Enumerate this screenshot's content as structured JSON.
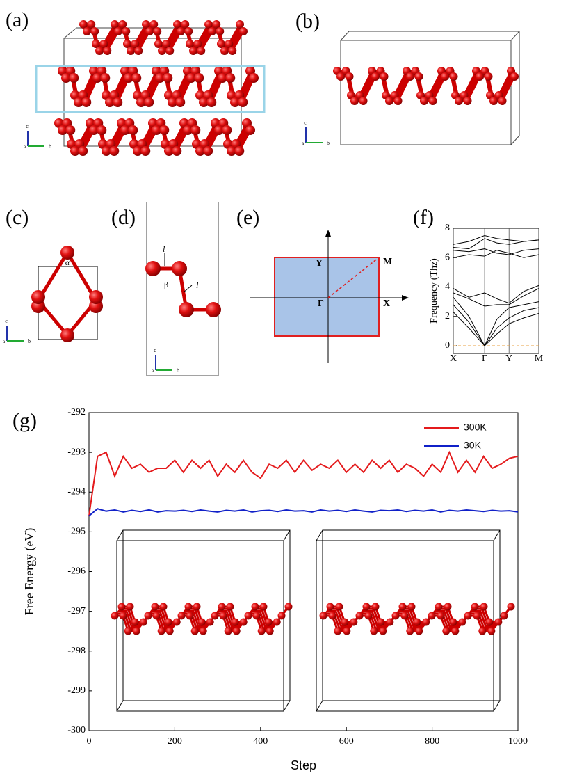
{
  "panel_labels": [
    "(a)",
    "(b)",
    "(c)",
    "(d)",
    "(e)",
    "(f)",
    "(g)"
  ],
  "structure_labels": {
    "axis_c": "c",
    "axis_b": "b",
    "axis_a": "a",
    "alpha": "α",
    "beta": "β",
    "bond_l": "l",
    "bz_Y": "Y",
    "bz_M": "M",
    "bz_Gamma": "Γ",
    "bz_X": "X"
  },
  "chart_data": [
    {
      "type": "line",
      "ylabel": "Frequency (Thz)",
      "x": [
        0,
        0.5,
        1,
        1.39,
        1.78,
        2.25,
        2.73
      ],
      "xlim": [
        0,
        2.73
      ],
      "xticks": [
        {
          "value": 0,
          "label": "X"
        },
        {
          "value": 1,
          "label": "Γ"
        },
        {
          "value": 1.78,
          "label": "Y"
        },
        {
          "value": 2.73,
          "label": "M"
        }
      ],
      "ylim": [
        -0.52,
        8
      ],
      "yticks": [
        0,
        2,
        4,
        6,
        8
      ],
      "reference_line": {
        "value": 0,
        "color": "#e8a040"
      },
      "series": [
        {
          "color": "#000000",
          "values": [
            2.3,
            1.2,
            0,
            0.8,
            1.5,
            1.9,
            2.2
          ]
        },
        {
          "color": "#000000",
          "values": [
            2.8,
            1.6,
            0,
            1.2,
            1.9,
            2.4,
            2.6
          ]
        },
        {
          "color": "#000000",
          "values": [
            3.3,
            2.0,
            0,
            1.8,
            2.6,
            2.8,
            3.0
          ]
        },
        {
          "color": "#000000",
          "values": [
            3.6,
            3.2,
            2.7,
            2.8,
            2.8,
            3.4,
            3.9
          ]
        },
        {
          "color": "#000000",
          "values": [
            3.9,
            3.3,
            3.6,
            3.2,
            2.9,
            3.7,
            4.1
          ]
        },
        {
          "color": "#000000",
          "values": [
            6.0,
            6.2,
            6.1,
            6.5,
            6.3,
            6.0,
            6.2
          ]
        },
        {
          "color": "#000000",
          "values": [
            6.5,
            6.4,
            6.6,
            6.3,
            6.2,
            6.5,
            6.6
          ]
        },
        {
          "color": "#000000",
          "values": [
            6.7,
            6.6,
            7.3,
            7.0,
            6.9,
            7.1,
            7.2
          ]
        },
        {
          "color": "#000000",
          "values": [
            6.9,
            7.1,
            7.5,
            7.3,
            7.2,
            7.1,
            7.2
          ]
        }
      ]
    },
    {
      "type": "line",
      "xlabel": "Step",
      "ylabel": "Free Energy (eV)",
      "x": [
        0,
        20,
        40,
        60,
        80,
        100,
        120,
        140,
        160,
        180,
        200,
        220,
        240,
        260,
        280,
        300,
        320,
        340,
        360,
        380,
        400,
        420,
        440,
        460,
        480,
        500,
        520,
        540,
        560,
        580,
        600,
        620,
        640,
        660,
        680,
        700,
        720,
        740,
        760,
        780,
        800,
        820,
        840,
        860,
        880,
        900,
        920,
        940,
        960,
        980,
        1000
      ],
      "xlim": [
        0,
        1000
      ],
      "xticks": [
        0,
        200,
        400,
        600,
        800,
        1000
      ],
      "ylim": [
        -300,
        -292
      ],
      "yticks": [
        -300,
        -299,
        -298,
        -297,
        -296,
        -295,
        -294,
        -293,
        -292
      ],
      "legend": "upper right",
      "series": [
        {
          "name": "300K",
          "color": "#e41a1c",
          "values": [
            -294.6,
            -293.1,
            -293.0,
            -293.6,
            -293.1,
            -293.4,
            -293.3,
            -293.5,
            -293.4,
            -293.4,
            -293.2,
            -293.5,
            -293.2,
            -293.4,
            -293.2,
            -293.6,
            -293.3,
            -293.5,
            -293.2,
            -293.5,
            -293.65,
            -293.3,
            -293.4,
            -293.2,
            -293.5,
            -293.2,
            -293.45,
            -293.3,
            -293.4,
            -293.2,
            -293.5,
            -293.3,
            -293.5,
            -293.2,
            -293.4,
            -293.2,
            -293.5,
            -293.3,
            -293.4,
            -293.6,
            -293.3,
            -293.5,
            -293.0,
            -293.5,
            -293.2,
            -293.5,
            -293.1,
            -293.4,
            -293.3,
            -293.15,
            -293.1
          ]
        },
        {
          "name": "30K",
          "color": "#1020c8",
          "values": [
            -294.6,
            -294.42,
            -294.48,
            -294.45,
            -294.5,
            -294.46,
            -294.49,
            -294.45,
            -294.5,
            -294.47,
            -294.48,
            -294.46,
            -294.49,
            -294.45,
            -294.48,
            -294.5,
            -294.46,
            -294.48,
            -294.45,
            -294.5,
            -294.47,
            -294.46,
            -294.49,
            -294.45,
            -294.48,
            -294.47,
            -294.5,
            -294.45,
            -294.48,
            -294.46,
            -294.49,
            -294.45,
            -294.48,
            -294.5,
            -294.46,
            -294.47,
            -294.45,
            -294.49,
            -294.46,
            -294.48,
            -294.45,
            -294.5,
            -294.46,
            -294.48,
            -294.45,
            -294.47,
            -294.49,
            -294.46,
            -294.48,
            -294.47,
            -294.5
          ]
        }
      ]
    }
  ]
}
